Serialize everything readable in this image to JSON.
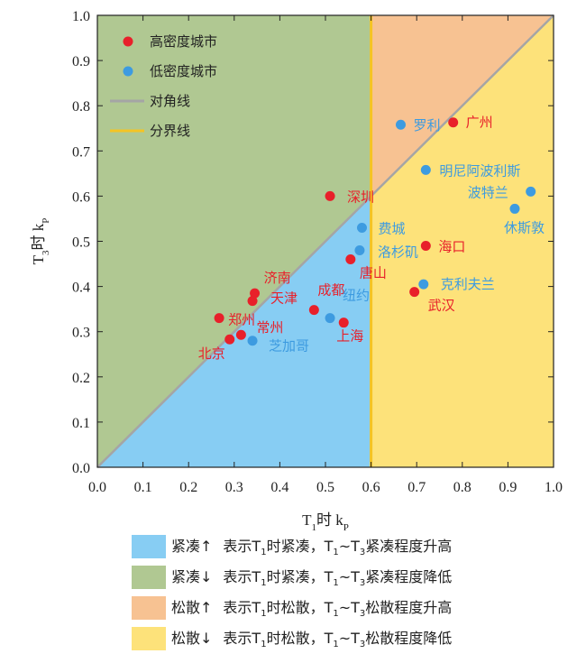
{
  "chart_data": {
    "type": "scatter",
    "xlabel": {
      "base": "T",
      "sub": "1",
      "rest": "时 k",
      "sub2": "P"
    },
    "ylabel": {
      "base": "T",
      "sub": "3",
      "rest": "时 k",
      "sub2": "P"
    },
    "xlim": [
      0,
      1.0
    ],
    "ylim": [
      0,
      1.0
    ],
    "xticks": [
      "0.0",
      "0.1",
      "0.2",
      "0.3",
      "0.4",
      "0.5",
      "0.6",
      "0.7",
      "0.8",
      "0.9",
      "1.0"
    ],
    "yticks": [
      "0.0",
      "0.1",
      "0.2",
      "0.3",
      "0.4",
      "0.5",
      "0.6",
      "0.7",
      "0.8",
      "0.9",
      "1.0"
    ],
    "boundary_x": 0.6,
    "grid": false,
    "legend_position": "top-left",
    "legend": {
      "high": "高密度城市",
      "low": "低密度城市",
      "diagonal": "对角线",
      "boundary": "分界线"
    },
    "colors": {
      "high": "#e8202a",
      "low": "#3d9be0",
      "diagonal": "#a5a5a5",
      "boundary": "#f5c423",
      "region_blue": "#87cdf3",
      "region_green": "#b0c892",
      "region_orange": "#f7c292",
      "region_yellow": "#fde27a"
    },
    "series": [
      {
        "name": "高密度城市",
        "color": "#e8202a",
        "points": [
          {
            "label": "广州",
            "x": 0.78,
            "y": 0.763
          },
          {
            "label": "深圳",
            "x": 0.51,
            "y": 0.6
          },
          {
            "label": "海口",
            "x": 0.72,
            "y": 0.49
          },
          {
            "label": "唐山",
            "x": 0.555,
            "y": 0.46
          },
          {
            "label": "武汉",
            "x": 0.695,
            "y": 0.388
          },
          {
            "label": "济南",
            "x": 0.345,
            "y": 0.385
          },
          {
            "label": "天津",
            "x": 0.34,
            "y": 0.368
          },
          {
            "label": "成都",
            "x": 0.475,
            "y": 0.348
          },
          {
            "label": "郑州",
            "x": 0.267,
            "y": 0.33
          },
          {
            "label": "上海",
            "x": 0.54,
            "y": 0.32
          },
          {
            "label": "常州",
            "x": 0.315,
            "y": 0.293
          },
          {
            "label": "北京",
            "x": 0.29,
            "y": 0.283
          }
        ]
      },
      {
        "name": "低密度城市",
        "color": "#3d9be0",
        "points": [
          {
            "label": "罗利",
            "x": 0.665,
            "y": 0.758
          },
          {
            "label": "明尼阿波利斯",
            "x": 0.72,
            "y": 0.658
          },
          {
            "label": "波特兰",
            "x": 0.95,
            "y": 0.61
          },
          {
            "label": "休斯敦",
            "x": 0.915,
            "y": 0.572
          },
          {
            "label": "费城",
            "x": 0.58,
            "y": 0.53
          },
          {
            "label": "洛杉矶",
            "x": 0.575,
            "y": 0.48
          },
          {
            "label": "克利夫兰",
            "x": 0.715,
            "y": 0.405
          },
          {
            "label": "纽约",
            "x": 0.51,
            "y": 0.33
          },
          {
            "label": "芝加哥",
            "x": 0.34,
            "y": 0.28
          }
        ]
      }
    ]
  },
  "region_legend": [
    {
      "key": "region_blue",
      "label": "紧凑↑",
      "desc": [
        {
          "t": "表示T"
        },
        {
          "s": "1"
        },
        {
          "t": "时紧凑，T"
        },
        {
          "s": "1"
        },
        {
          "t": "~T"
        },
        {
          "s": "3"
        },
        {
          "t": "紧凑程度升高"
        }
      ]
    },
    {
      "key": "region_green",
      "label": "紧凑↓",
      "desc": [
        {
          "t": "表示T"
        },
        {
          "s": "1"
        },
        {
          "t": "时紧凑，T"
        },
        {
          "s": "1"
        },
        {
          "t": "~T"
        },
        {
          "s": "3"
        },
        {
          "t": "紧凑程度降低"
        }
      ]
    },
    {
      "key": "region_orange",
      "label": "松散↑",
      "desc": [
        {
          "t": "表示T"
        },
        {
          "s": "1"
        },
        {
          "t": "时松散，T"
        },
        {
          "s": "1"
        },
        {
          "t": "~T"
        },
        {
          "s": "3"
        },
        {
          "t": "松散程度升高"
        }
      ]
    },
    {
      "key": "region_yellow",
      "label": "松散↓",
      "desc": [
        {
          "t": "表示T"
        },
        {
          "s": "1"
        },
        {
          "t": "时松散，T"
        },
        {
          "s": "1"
        },
        {
          "t": "~T"
        },
        {
          "s": "3"
        },
        {
          "t": "松散程度降低"
        }
      ]
    }
  ]
}
